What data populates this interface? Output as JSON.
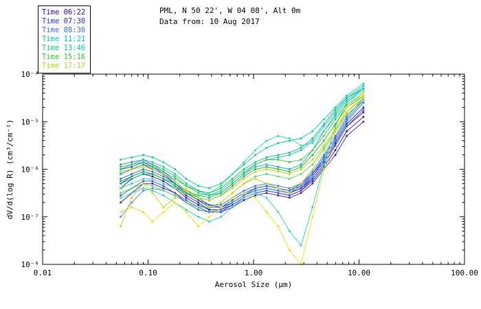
{
  "header": {
    "title_line1": "PML, N 50 22', W 04 08', Alt 0m",
    "title_line2": "Data from: 10 Aug 2017"
  },
  "legend": {
    "entries": [
      {
        "label": "Time 06:22",
        "color": "#3400a3"
      },
      {
        "label": "Time 07:30",
        "color": "#2630d8"
      },
      {
        "label": "Time 08:30",
        "color": "#2e6fe8"
      },
      {
        "label": "Time 11:21",
        "color": "#00c3cc"
      },
      {
        "label": "Time 13:46",
        "color": "#00cf8a"
      },
      {
        "label": "Time 15:16",
        "color": "#2fc92f"
      },
      {
        "label": "Time 17:17",
        "color": "#b4d400"
      }
    ]
  },
  "chart_data": {
    "type": "line",
    "title": "PML, N 50 22', W 04 08', Alt 0m",
    "subtitle": "Data from: 10 Aug 2017",
    "xlabel": "Aerosol Size (µm)",
    "ylabel": "dV/d(log R) (cm³/cm⁻²)",
    "x_scale": "log",
    "y_scale": "log",
    "xlim": [
      0.01,
      100
    ],
    "ylim": [
      1e-08,
      0.0001
    ],
    "x_ticks": [
      "0.01",
      "0.10",
      "1.00",
      "10.00",
      "100.00"
    ],
    "x_tick_values": [
      0.01,
      0.1,
      1,
      10,
      100
    ],
    "y_ticks": [
      "10⁻⁸",
      "10⁻⁷",
      "10⁻⁶",
      "10⁻⁵",
      "10⁻⁴"
    ],
    "y_tick_exponents": [
      -8,
      -7,
      -6,
      -5,
      -4
    ],
    "grid": false,
    "legend_position": "outside-top-left",
    "marker": "square",
    "x": [
      0.055,
      0.07,
      0.09,
      0.11,
      0.14,
      0.18,
      0.23,
      0.3,
      0.38,
      0.49,
      0.63,
      0.81,
      1.04,
      1.33,
      1.71,
      2.19,
      2.82,
      3.62,
      4.64,
      5.96,
      7.65,
      11.0
    ],
    "y_units_note": "series values are log10 of dV/d(log R)",
    "series": [
      {
        "name": "Time 06:22",
        "color": "#3400a3",
        "y_log10": [
          -6.1,
          -6.0,
          -5.9,
          -6.0,
          -6.1,
          -6.3,
          -6.5,
          -6.65,
          -6.75,
          -6.8,
          -6.7,
          -6.55,
          -6.45,
          -6.4,
          -6.45,
          -6.5,
          -6.4,
          -6.2,
          -5.9,
          -5.5,
          -5.1,
          -4.8
        ]
      },
      {
        "name": "Time 06:22",
        "color": "#26077e",
        "y_log10": [
          -6.4,
          -6.2,
          -6.1,
          -6.15,
          -6.25,
          -6.4,
          -6.6,
          -6.75,
          -6.85,
          -6.85,
          -6.75,
          -6.6,
          -6.5,
          -6.45,
          -6.5,
          -6.55,
          -6.45,
          -6.25,
          -5.95,
          -5.6,
          -5.2,
          -4.9
        ]
      },
      {
        "name": "Time 06:22",
        "color": "#43159e",
        "y_log10": [
          -6.7,
          -6.5,
          -6.3,
          -6.3,
          -6.4,
          -6.5,
          -6.7,
          -6.85,
          -6.9,
          -6.9,
          -6.8,
          -6.65,
          -6.55,
          -6.5,
          -6.55,
          -6.6,
          -6.5,
          -6.3,
          -6.0,
          -5.7,
          -5.3,
          -5.0
        ]
      },
      {
        "name": "Time 07:30",
        "color": "#2630d8",
        "y_log10": [
          -6.0,
          -5.95,
          -5.85,
          -5.95,
          -6.1,
          -6.3,
          -6.5,
          -6.65,
          -6.8,
          -6.8,
          -6.7,
          -6.55,
          -6.4,
          -6.35,
          -6.4,
          -6.45,
          -6.35,
          -6.1,
          -5.8,
          -5.4,
          -5.0,
          -4.6
        ]
      },
      {
        "name": "Time 07:30",
        "color": "#1b2bb8",
        "y_log10": [
          -6.3,
          -6.15,
          -6.05,
          -6.1,
          -6.2,
          -6.35,
          -6.55,
          -6.7,
          -6.85,
          -6.85,
          -6.7,
          -6.55,
          -6.45,
          -6.4,
          -6.45,
          -6.5,
          -6.4,
          -6.15,
          -5.85,
          -5.45,
          -5.05,
          -4.7
        ]
      },
      {
        "name": "Time 07:30",
        "color": "#3347e8",
        "y_log10": [
          -6.55,
          -6.4,
          -6.25,
          -6.25,
          -6.35,
          -6.5,
          -6.65,
          -6.8,
          -6.9,
          -6.9,
          -6.75,
          -6.6,
          -6.5,
          -6.45,
          -6.5,
          -6.55,
          -6.45,
          -6.2,
          -5.9,
          -5.5,
          -5.1,
          -4.75
        ]
      },
      {
        "name": "Time 08:30",
        "color": "#2e6fe8",
        "y_log10": [
          -5.9,
          -5.85,
          -5.8,
          -5.9,
          -6.05,
          -6.25,
          -6.45,
          -6.6,
          -6.75,
          -6.75,
          -6.6,
          -6.45,
          -6.35,
          -6.3,
          -6.35,
          -6.4,
          -6.3,
          -6.05,
          -5.7,
          -5.3,
          -4.9,
          -4.5
        ]
      },
      {
        "name": "Time 08:30",
        "color": "#2361cf",
        "y_log10": [
          -6.2,
          -6.1,
          -6.0,
          -6.05,
          -6.15,
          -6.3,
          -6.5,
          -6.65,
          -6.8,
          -6.8,
          -6.65,
          -6.5,
          -6.4,
          -6.35,
          -6.4,
          -6.45,
          -6.3,
          -6.1,
          -5.75,
          -5.35,
          -4.95,
          -4.55
        ]
      },
      {
        "name": "Time 08:30",
        "color": "#3d82f0",
        "y_log10": [
          -7.0,
          -6.7,
          -6.45,
          -6.4,
          -6.45,
          -6.55,
          -6.7,
          -6.85,
          -6.9,
          -6.85,
          -6.7,
          -6.55,
          -6.45,
          -6.4,
          -6.45,
          -6.5,
          -6.35,
          -6.15,
          -5.8,
          -5.4,
          -5.0,
          -4.6
        ]
      },
      {
        "name": "Time 11:21",
        "color": "#00c3cc",
        "y_log10": [
          -6.0,
          -5.9,
          -5.8,
          -5.85,
          -5.95,
          -6.1,
          -6.3,
          -6.45,
          -6.55,
          -6.5,
          -6.3,
          -6.1,
          -5.9,
          -5.8,
          -5.75,
          -5.7,
          -5.6,
          -5.4,
          -5.1,
          -4.8,
          -4.5,
          -4.25
        ]
      },
      {
        "name": "Time 11:21",
        "color": "#00aec4",
        "y_log10": [
          -6.3,
          -6.2,
          -6.1,
          -6.1,
          -6.2,
          -6.3,
          -6.45,
          -6.55,
          -6.6,
          -6.5,
          -6.3,
          -6.1,
          -5.95,
          -5.9,
          -5.95,
          -6.0,
          -5.9,
          -5.6,
          -5.2,
          -4.85,
          -4.55,
          -4.3
        ]
      },
      {
        "name": "Time 11:21",
        "color": "#17d3d3",
        "y_log10": [
          -6.6,
          -6.5,
          -6.4,
          -6.45,
          -6.55,
          -6.7,
          -6.85,
          -7.0,
          -7.1,
          -7.0,
          -6.8,
          -6.6,
          -6.5,
          -6.6,
          -6.9,
          -7.3,
          -7.6,
          -6.8,
          -5.9,
          -5.1,
          -4.6,
          -4.3
        ]
      },
      {
        "name": "Time 13:46",
        "color": "#00cf8a",
        "y_log10": [
          -5.8,
          -5.75,
          -5.7,
          -5.75,
          -5.85,
          -6.0,
          -6.2,
          -6.35,
          -6.4,
          -6.3,
          -6.1,
          -5.9,
          -5.7,
          -5.55,
          -5.45,
          -5.4,
          -5.35,
          -5.2,
          -4.95,
          -4.7,
          -4.45,
          -4.2
        ]
      },
      {
        "name": "Time 13:46",
        "color": "#0abf75",
        "y_log10": [
          -6.1,
          -6.0,
          -5.9,
          -5.95,
          -6.05,
          -6.2,
          -6.35,
          -6.45,
          -6.5,
          -6.4,
          -6.2,
          -6.0,
          -5.85,
          -5.75,
          -5.7,
          -5.65,
          -5.55,
          -5.35,
          -5.05,
          -4.75,
          -4.5,
          -4.3
        ]
      },
      {
        "name": "Time 13:46",
        "color": "#25d99b",
        "y_log10": [
          -6.4,
          -6.3,
          -6.2,
          -6.2,
          -6.3,
          -6.4,
          -6.5,
          -6.55,
          -6.5,
          -6.35,
          -6.1,
          -5.85,
          -5.6,
          -5.4,
          -5.3,
          -5.35,
          -5.5,
          -5.45,
          -5.2,
          -4.9,
          -4.6,
          -4.35
        ]
      },
      {
        "name": "Time 15:16",
        "color": "#2fc92f",
        "y_log10": [
          -5.95,
          -5.9,
          -5.85,
          -5.9,
          -6.0,
          -6.15,
          -6.35,
          -6.5,
          -6.55,
          -6.45,
          -6.25,
          -6.05,
          -5.9,
          -5.8,
          -5.8,
          -5.85,
          -5.8,
          -5.6,
          -5.3,
          -4.95,
          -4.65,
          -4.4
        ]
      },
      {
        "name": "Time 15:16",
        "color": "#1fb51f",
        "y_log10": [
          -6.25,
          -6.15,
          -6.05,
          -6.1,
          -6.2,
          -6.35,
          -6.5,
          -6.6,
          -6.65,
          -6.55,
          -6.35,
          -6.15,
          -6.0,
          -5.95,
          -6.0,
          -6.05,
          -5.95,
          -5.7,
          -5.4,
          -5.05,
          -4.7,
          -4.45
        ]
      },
      {
        "name": "Time 15:16",
        "color": "#4fd94f",
        "y_log10": [
          -6.5,
          -6.4,
          -6.3,
          -6.35,
          -6.45,
          -6.55,
          -6.7,
          -6.8,
          -6.8,
          -6.7,
          -6.5,
          -6.3,
          -6.15,
          -6.1,
          -6.15,
          -6.2,
          -6.1,
          -5.9,
          -5.55,
          -5.2,
          -4.85,
          -4.55
        ]
      },
      {
        "name": "Time 17:17",
        "color": "#b4d400",
        "y_log10": [
          -6.05,
          -6.0,
          -5.95,
          -6.0,
          -6.1,
          -6.25,
          -6.45,
          -6.6,
          -6.65,
          -6.55,
          -6.4,
          -6.2,
          -6.05,
          -6.0,
          -6.05,
          -6.1,
          -6.0,
          -5.8,
          -5.5,
          -5.15,
          -4.8,
          -4.5
        ]
      },
      {
        "name": "Time 17:17",
        "color": "#e8e000",
        "y_log10": [
          -6.9,
          -6.8,
          -6.9,
          -7.1,
          -6.9,
          -6.7,
          -6.9,
          -7.2,
          -7.0,
          -6.8,
          -6.6,
          -6.5,
          -6.6,
          -6.9,
          -7.2,
          -7.7,
          -8.0,
          -7.0,
          -6.0,
          -5.2,
          -4.7,
          -4.4
        ]
      },
      {
        "name": "Time 17:17",
        "color": "#ccd400",
        "y_log10": [
          -7.2,
          -6.6,
          -6.3,
          -6.5,
          -6.8,
          -6.6,
          -6.4,
          -6.6,
          -6.8,
          -6.7,
          -6.5,
          -6.3,
          -6.2,
          -6.3,
          -6.4,
          -6.5,
          -6.3,
          -6.0,
          -5.6,
          -5.2,
          -4.8,
          -4.45
        ]
      }
    ]
  }
}
